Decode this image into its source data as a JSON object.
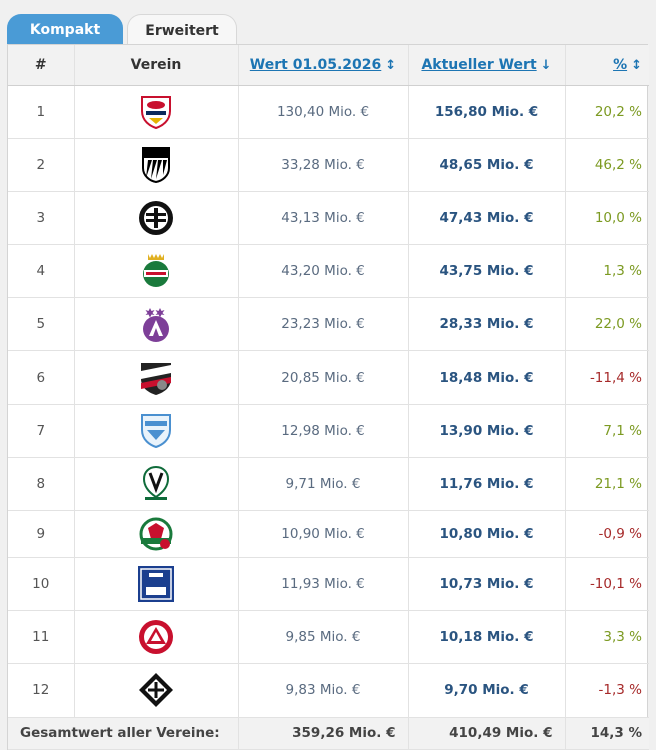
{
  "tabs": [
    {
      "label": "Kompakt",
      "active": true
    },
    {
      "label": "Erweitert",
      "active": false
    }
  ],
  "columns": {
    "rank": "#",
    "club": "Verein",
    "old_value": "Wert 01.05.2026",
    "current_value": "Aktueller Wert",
    "percent": "%"
  },
  "rows": [
    {
      "rank": "1",
      "logo": "red-bull-salzburg-logo",
      "old": "130,40 Mio. €",
      "cur": "156,80 Mio. €",
      "pct": "20,2 %",
      "trend": "up"
    },
    {
      "rank": "2",
      "logo": "lask-logo",
      "old": "33,28 Mio. €",
      "cur": "48,65 Mio. €",
      "pct": "46,2 %",
      "trend": "up"
    },
    {
      "rank": "3",
      "logo": "sturm-graz-logo",
      "old": "43,13 Mio. €",
      "cur": "47,43 Mio. €",
      "pct": "10,0 %",
      "trend": "up"
    },
    {
      "rank": "4",
      "logo": "rapid-wien-logo",
      "old": "43,20 Mio. €",
      "cur": "43,75 Mio. €",
      "pct": "1,3 %",
      "trend": "up"
    },
    {
      "rank": "5",
      "logo": "austria-wien-logo",
      "old": "23,23 Mio. €",
      "cur": "28,33 Mio. €",
      "pct": "22,0 %",
      "trend": "up"
    },
    {
      "rank": "6",
      "logo": "wolfsberger-ac-logo",
      "old": "20,85 Mio. €",
      "cur": "18,48 Mio. €",
      "pct": "-11,4 %",
      "trend": "down"
    },
    {
      "rank": "7",
      "logo": "tsv-hartberg-logo",
      "old": "12,98 Mio. €",
      "cur": "13,90 Mio. €",
      "pct": "7,1 %",
      "trend": "up"
    },
    {
      "rank": "8",
      "logo": "sv-ried-logo",
      "old": "9,71 Mio. €",
      "cur": "11,76 Mio. €",
      "pct": "21,1 %",
      "trend": "up"
    },
    {
      "rank": "9",
      "logo": "wsg-tirol-logo",
      "old": "10,90 Mio. €",
      "cur": "10,80 Mio. €",
      "pct": "-0,9 %",
      "trend": "down"
    },
    {
      "rank": "10",
      "logo": "blau-weiss-linz-logo",
      "old": "11,93 Mio. €",
      "cur": "10,73 Mio. €",
      "pct": "-10,1 %",
      "trend": "down"
    },
    {
      "rank": "11",
      "logo": "gak-logo",
      "old": "9,85 Mio. €",
      "cur": "10,18 Mio. €",
      "pct": "3,3 %",
      "trend": "up"
    },
    {
      "rank": "12",
      "logo": "scr-altach-logo",
      "old": "9,83 Mio. €",
      "cur": "9,70 Mio. €",
      "pct": "-1,3 %",
      "trend": "down"
    }
  ],
  "footer": {
    "label": "Gesamtwert aller Vereine:",
    "old_total": "359,26 Mio. €",
    "current_total": "410,49 Mio. €",
    "percent": "14,3 %"
  },
  "colors": {
    "tab_active": "#4a9bd6",
    "link": "#1d75b3",
    "positive": "#7c9a22",
    "negative": "#a62a2a",
    "current_value": "#2a5480"
  }
}
